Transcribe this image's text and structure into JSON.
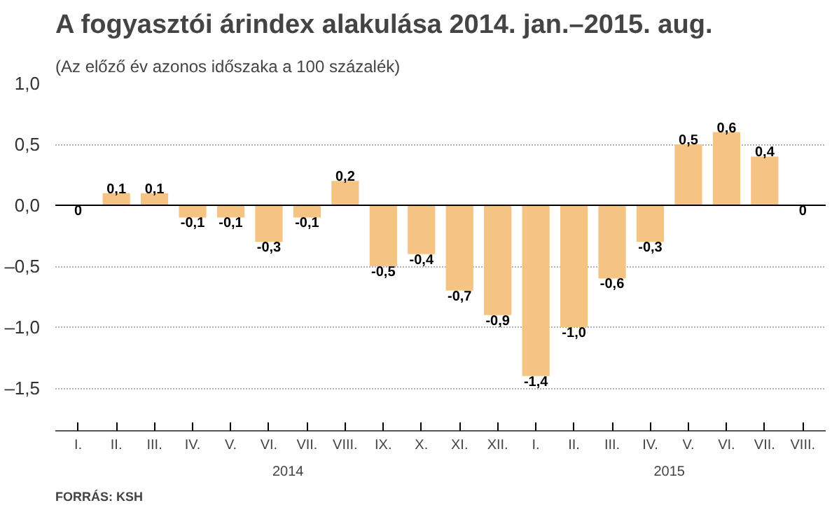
{
  "chart_data": {
    "type": "bar",
    "title": "A fogyasztói árindex alakulása 2014. jan.–2015. aug.",
    "subtitle": "(Az előző év azonos időszaka a 100 százalék)",
    "categories": [
      "I.",
      "II.",
      "III.",
      "IV.",
      "V.",
      "VI.",
      "VII.",
      "VIII.",
      "IX.",
      "X.",
      "XI.",
      "XII.",
      "I.",
      "II.",
      "III.",
      "IV.",
      "V.",
      "VI.",
      "VII.",
      "VIII."
    ],
    "values": [
      0,
      0.1,
      0.1,
      -0.1,
      -0.1,
      -0.3,
      -0.1,
      0.2,
      -0.5,
      -0.4,
      -0.7,
      -0.9,
      -1.4,
      -1.0,
      -0.6,
      -0.3,
      0.5,
      0.6,
      0.4,
      0
    ],
    "value_labels": [
      "0",
      "0,1",
      "0,1",
      "-0,1",
      "-0,1",
      "-0,3",
      "-0,1",
      "0,2",
      "-0,5",
      "-0,4",
      "-0,7",
      "-0,9",
      "-1,4",
      "-1,0",
      "-0,6",
      "-0,3",
      "0,5",
      "0,6",
      "0,4",
      "0"
    ],
    "color": "#f5c482",
    "ylim": [
      -1.85,
      1.0
    ],
    "yticks": [
      {
        "value": -1.5,
        "label": "–1,5"
      },
      {
        "value": -1.0,
        "label": "–1,0"
      },
      {
        "value": -0.5,
        "label": "–0,5"
      },
      {
        "value": 0.0,
        "label": "0,0"
      },
      {
        "value": 0.5,
        "label": "0,5"
      },
      {
        "value": 1.0,
        "label": "1,0"
      }
    ],
    "grid": "y",
    "annotations": [
      "2014",
      "2015",
      "FORRÁS: KSH"
    ]
  }
}
